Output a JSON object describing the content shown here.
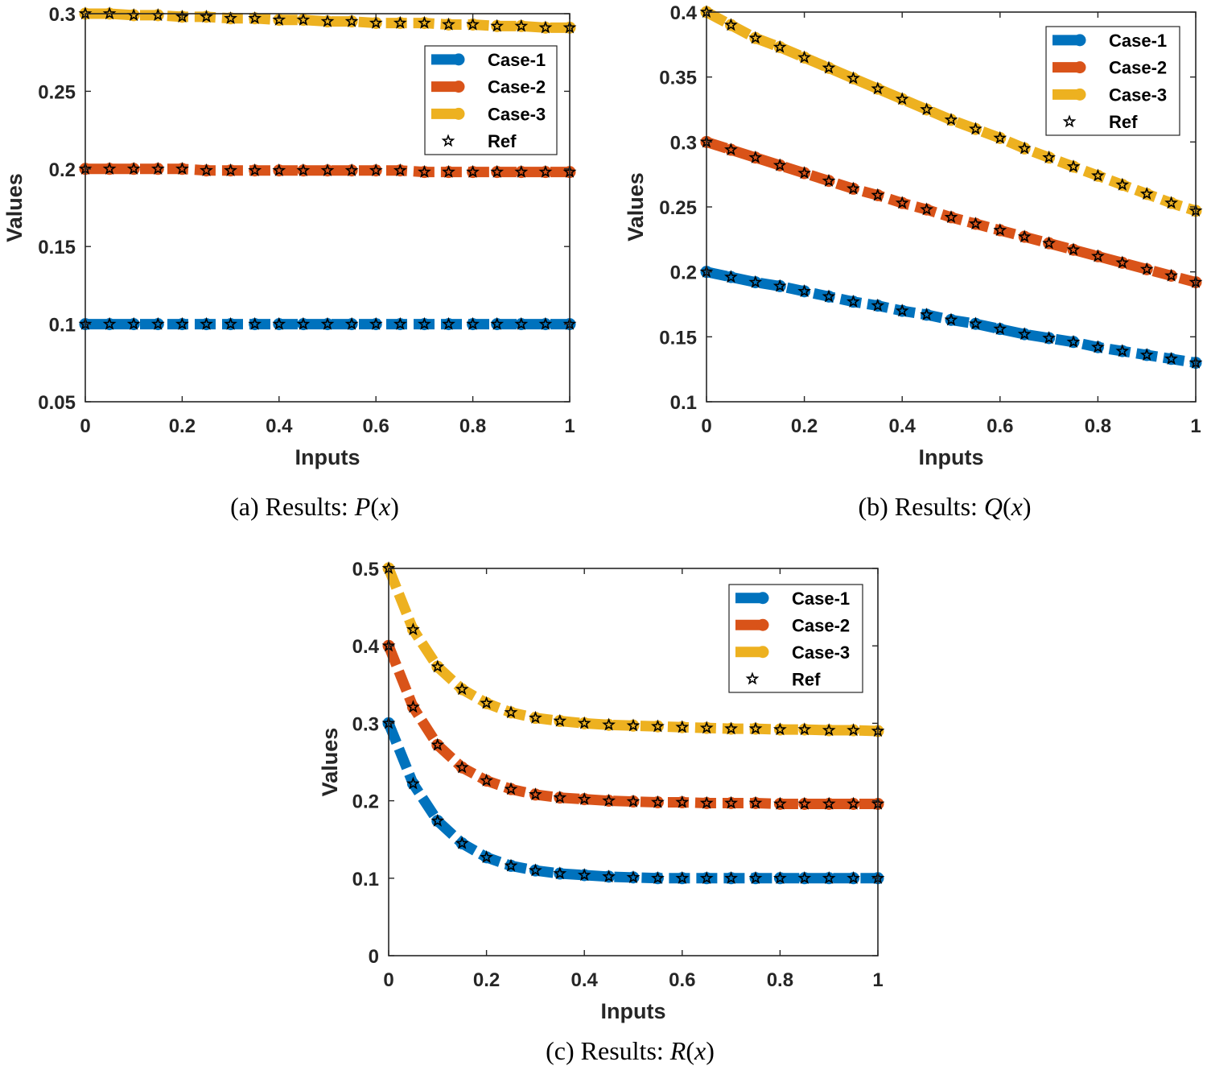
{
  "figure": {
    "colors": {
      "case1": "#0072BD",
      "case2": "#D95319",
      "case3": "#EDB120",
      "ref_marker": "#000000",
      "axes": "#262626"
    }
  },
  "chart_data": [
    {
      "id": "a",
      "type": "line",
      "caption": {
        "prefix": "(a) Results: ",
        "func": "P",
        "arg": "x"
      },
      "xlabel": "Inputs",
      "ylabel": "Values",
      "xlim": [
        0,
        1
      ],
      "ylim": [
        0.05,
        0.3
      ],
      "xticks": [
        "0",
        "0.2",
        "0.4",
        "0.6",
        "0.8",
        "1"
      ],
      "yticks": [
        "0.05",
        "0.1",
        "0.15",
        "0.2",
        "0.25",
        "0.3"
      ],
      "legend_position": "top-right",
      "legend": [
        "Case-1",
        "Case-2",
        "Case-3",
        "Ref"
      ],
      "x": [
        0,
        0.05,
        0.1,
        0.15,
        0.2,
        0.25,
        0.3,
        0.35,
        0.4,
        0.45,
        0.5,
        0.55,
        0.6,
        0.65,
        0.7,
        0.75,
        0.8,
        0.85,
        0.9,
        0.95,
        1.0
      ],
      "series": [
        {
          "name": "Case-1",
          "values": [
            0.1,
            0.1,
            0.1,
            0.1,
            0.1,
            0.1,
            0.1,
            0.1,
            0.1,
            0.1,
            0.1,
            0.1,
            0.1,
            0.1,
            0.1,
            0.1,
            0.1,
            0.1,
            0.1,
            0.1,
            0.1
          ]
        },
        {
          "name": "Case-2",
          "values": [
            0.2,
            0.2,
            0.2,
            0.2,
            0.2,
            0.199,
            0.199,
            0.199,
            0.199,
            0.199,
            0.199,
            0.199,
            0.199,
            0.199,
            0.198,
            0.198,
            0.198,
            0.198,
            0.198,
            0.198,
            0.198
          ]
        },
        {
          "name": "Case-3",
          "values": [
            0.3,
            0.3,
            0.299,
            0.299,
            0.298,
            0.298,
            0.297,
            0.297,
            0.296,
            0.296,
            0.295,
            0.295,
            0.294,
            0.294,
            0.294,
            0.293,
            0.293,
            0.292,
            0.292,
            0.291,
            0.291
          ]
        }
      ]
    },
    {
      "id": "b",
      "type": "line",
      "caption": {
        "prefix": "(b) Results: ",
        "func": "Q",
        "arg": "x"
      },
      "xlabel": "Inputs",
      "ylabel": "Values",
      "xlim": [
        0,
        1
      ],
      "ylim": [
        0.1,
        0.4
      ],
      "xticks": [
        "0",
        "0.2",
        "0.4",
        "0.6",
        "0.8",
        "1"
      ],
      "yticks": [
        "0.1",
        "0.15",
        "0.2",
        "0.25",
        "0.3",
        "0.35",
        "0.4"
      ],
      "legend_position": "top-right",
      "legend": [
        "Case-1",
        "Case-2",
        "Case-3",
        "Ref"
      ],
      "x": [
        0,
        0.05,
        0.1,
        0.15,
        0.2,
        0.25,
        0.3,
        0.35,
        0.4,
        0.45,
        0.5,
        0.55,
        0.6,
        0.65,
        0.7,
        0.75,
        0.8,
        0.85,
        0.9,
        0.95,
        1.0
      ],
      "series": [
        {
          "name": "Case-1",
          "values": [
            0.2,
            0.196,
            0.192,
            0.189,
            0.185,
            0.181,
            0.177,
            0.174,
            0.17,
            0.167,
            0.163,
            0.16,
            0.156,
            0.152,
            0.149,
            0.146,
            0.142,
            0.139,
            0.136,
            0.133,
            0.13
          ]
        },
        {
          "name": "Case-2",
          "values": [
            0.3,
            0.294,
            0.288,
            0.282,
            0.276,
            0.27,
            0.264,
            0.259,
            0.253,
            0.248,
            0.242,
            0.237,
            0.232,
            0.227,
            0.222,
            0.217,
            0.212,
            0.207,
            0.202,
            0.197,
            0.192
          ]
        },
        {
          "name": "Case-3",
          "values": [
            0.4,
            0.39,
            0.38,
            0.373,
            0.365,
            0.357,
            0.349,
            0.341,
            0.333,
            0.325,
            0.317,
            0.31,
            0.303,
            0.295,
            0.288,
            0.281,
            0.274,
            0.267,
            0.26,
            0.253,
            0.247
          ]
        }
      ]
    },
    {
      "id": "c",
      "type": "line",
      "caption": {
        "prefix": "(c) Results: ",
        "func": "R",
        "arg": "x"
      },
      "xlabel": "Inputs",
      "ylabel": "Values",
      "xlim": [
        0,
        1
      ],
      "ylim": [
        0,
        0.5
      ],
      "xticks": [
        "0",
        "0.2",
        "0.4",
        "0.6",
        "0.8",
        "1"
      ],
      "yticks": [
        "0",
        "0.1",
        "0.2",
        "0.3",
        "0.4",
        "0.5"
      ],
      "legend_position": "top-right",
      "legend": [
        "Case-1",
        "Case-2",
        "Case-3",
        "Ref"
      ],
      "x": [
        0,
        0.05,
        0.1,
        0.15,
        0.2,
        0.25,
        0.3,
        0.35,
        0.4,
        0.45,
        0.5,
        0.55,
        0.6,
        0.65,
        0.7,
        0.75,
        0.8,
        0.85,
        0.9,
        0.95,
        1.0
      ],
      "series": [
        {
          "name": "Case-1",
          "values": [
            0.3,
            0.222,
            0.174,
            0.145,
            0.127,
            0.116,
            0.11,
            0.106,
            0.104,
            0.102,
            0.101,
            0.1,
            0.1,
            0.1,
            0.1,
            0.1,
            0.1,
            0.1,
            0.1,
            0.1,
            0.1
          ]
        },
        {
          "name": "Case-2",
          "values": [
            0.4,
            0.321,
            0.272,
            0.243,
            0.226,
            0.215,
            0.208,
            0.204,
            0.202,
            0.2,
            0.199,
            0.198,
            0.198,
            0.197,
            0.197,
            0.197,
            0.196,
            0.196,
            0.196,
            0.196,
            0.196
          ]
        },
        {
          "name": "Case-3",
          "values": [
            0.5,
            0.421,
            0.373,
            0.344,
            0.326,
            0.314,
            0.307,
            0.303,
            0.3,
            0.298,
            0.297,
            0.296,
            0.295,
            0.294,
            0.293,
            0.293,
            0.292,
            0.292,
            0.291,
            0.291,
            0.29
          ]
        }
      ]
    }
  ]
}
